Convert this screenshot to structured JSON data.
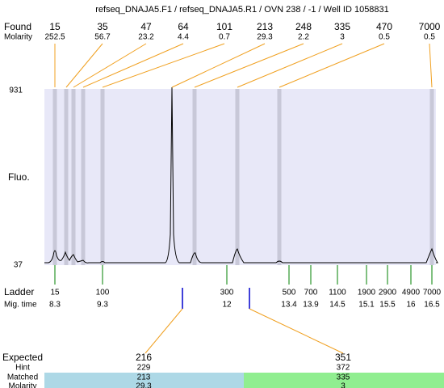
{
  "title": "refseq_DNAJA5.F1 / refseq_DNAJA5.R1 / OVN 238 / -1 / Well ID 1058831",
  "found": {
    "label": "Found",
    "molarity_label": "Molarity",
    "peaks": [
      {
        "size": "15",
        "molarity": "252.5"
      },
      {
        "size": "35",
        "molarity": "56.7"
      },
      {
        "size": "47",
        "molarity": "23.2"
      },
      {
        "size": "64",
        "molarity": "4.4"
      },
      {
        "size": "101",
        "molarity": "0.7"
      },
      {
        "size": "213",
        "molarity": "29.3"
      },
      {
        "size": "248",
        "molarity": "2.2"
      },
      {
        "size": "335",
        "molarity": "3"
      },
      {
        "size": "470",
        "molarity": "0.5"
      },
      {
        "size": "7000",
        "molarity": "0.5"
      }
    ]
  },
  "y_axis": {
    "label": "Fluo.",
    "max": "931",
    "min": "37"
  },
  "ladder": {
    "label": "Ladder",
    "time_label": "Mig. time",
    "bands": [
      {
        "size": "15",
        "time": "8.3"
      },
      {
        "size": "100",
        "time": "9.3"
      },
      {
        "size": "300",
        "time": "12"
      },
      {
        "size": "500",
        "time": "13.4"
      },
      {
        "size": "700",
        "time": "13.9"
      },
      {
        "size": "1100",
        "time": "14.5"
      },
      {
        "size": "1900",
        "time": "15.1"
      },
      {
        "size": "2900",
        "time": "15.5"
      },
      {
        "size": "4900",
        "time": "16"
      },
      {
        "size": "7000",
        "time": "16.5"
      }
    ]
  },
  "expected": {
    "row_labels": [
      "Expected",
      "Hint",
      "Matched",
      "Molarity"
    ],
    "targets": [
      [
        "216",
        "229",
        "213",
        "29.3"
      ],
      [
        "351",
        "372",
        "335",
        "3"
      ]
    ]
  }
}
